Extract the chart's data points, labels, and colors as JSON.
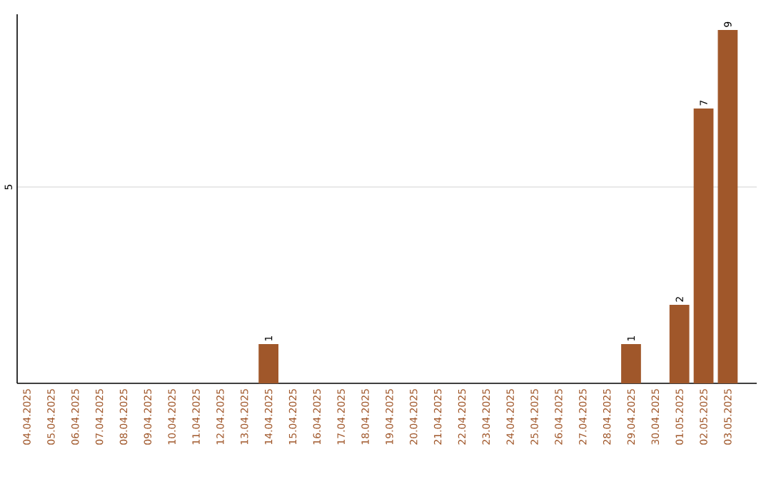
{
  "chart_data": {
    "type": "bar",
    "categories": [
      "04.04.2025",
      "05.04.2025",
      "06.04.2025",
      "07.04.2025",
      "08.04.2025",
      "09.04.2025",
      "10.04.2025",
      "11.04.2025",
      "12.04.2025",
      "13.04.2025",
      "14.04.2025",
      "15.04.2025",
      "16.04.2025",
      "17.04.2025",
      "18.04.2025",
      "19.04.2025",
      "20.04.2025",
      "21.04.2025",
      "22.04.2025",
      "23.04.2025",
      "24.04.2025",
      "25.04.2025",
      "26.04.2025",
      "27.04.2025",
      "28.04.2025",
      "29.04.2025",
      "30.04.2025",
      "01.05.2025",
      "02.05.2025",
      "03.05.2025"
    ],
    "values": [
      0,
      0,
      0,
      0,
      0,
      0,
      0,
      0,
      0,
      0,
      1,
      0,
      0,
      0,
      0,
      0,
      0,
      0,
      0,
      0,
      0,
      0,
      0,
      0,
      0,
      1,
      0,
      2,
      7,
      9
    ],
    "value_labels": [
      null,
      null,
      null,
      null,
      null,
      null,
      null,
      null,
      null,
      null,
      "1",
      null,
      null,
      null,
      null,
      null,
      null,
      null,
      null,
      null,
      null,
      null,
      null,
      null,
      null,
      "1",
      null,
      "2",
      "7",
      "9"
    ],
    "color": "#a0572a",
    "ylim": [
      0,
      9.4
    ],
    "yticks": [
      5
    ],
    "grid": "y"
  }
}
